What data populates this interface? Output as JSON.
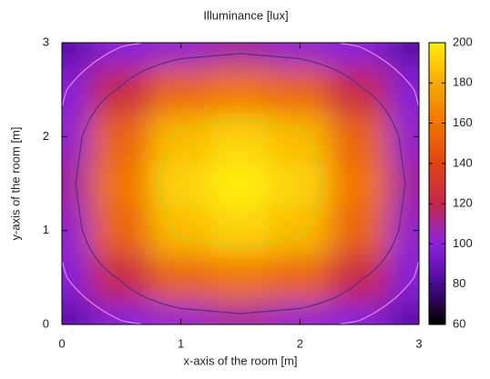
{
  "chart_data": {
    "type": "heatmap",
    "title": "Illuminance [lux]",
    "xlabel": "x-axis of the room [m]",
    "ylabel": "y-axis of the room [m]",
    "x": [
      0,
      0.5,
      1,
      1.5,
      2,
      2.5,
      3
    ],
    "y": [
      0,
      0.5,
      1,
      1.5,
      2,
      2.5,
      3
    ],
    "z": [
      [
        85,
        98,
        103,
        108,
        103,
        98,
        85
      ],
      [
        98,
        122,
        153,
        160,
        153,
        122,
        98
      ],
      [
        103,
        153,
        185,
        192,
        185,
        153,
        103
      ],
      [
        108,
        160,
        192,
        200,
        192,
        160,
        108
      ],
      [
        103,
        153,
        185,
        192,
        185,
        153,
        103
      ],
      [
        98,
        122,
        153,
        160,
        153,
        122,
        98
      ],
      [
        85,
        98,
        103,
        108,
        103,
        98,
        85
      ]
    ],
    "xlim": [
      0,
      3
    ],
    "ylim": [
      0,
      3
    ],
    "xticks": [
      0,
      1,
      2,
      3
    ],
    "yticks": [
      0,
      1,
      2,
      3
    ],
    "clim": [
      60,
      200
    ],
    "cticks": [
      60,
      80,
      100,
      120,
      140,
      160,
      180,
      200
    ],
    "colormap": [
      [
        60,
        "#000000"
      ],
      [
        80,
        "#4a0a90"
      ],
      [
        100,
        "#8a22e0"
      ],
      [
        120,
        "#c4284a"
      ],
      [
        140,
        "#e04414"
      ],
      [
        160,
        "#f07400"
      ],
      [
        180,
        "#f8aa00"
      ],
      [
        200,
        "#ffee10"
      ]
    ],
    "contours": [
      {
        "level": 100,
        "color": "#e884f4"
      },
      {
        "level": 120,
        "color": "#5a2a8a"
      },
      {
        "level": 180,
        "color": "#c8cc20"
      }
    ]
  }
}
